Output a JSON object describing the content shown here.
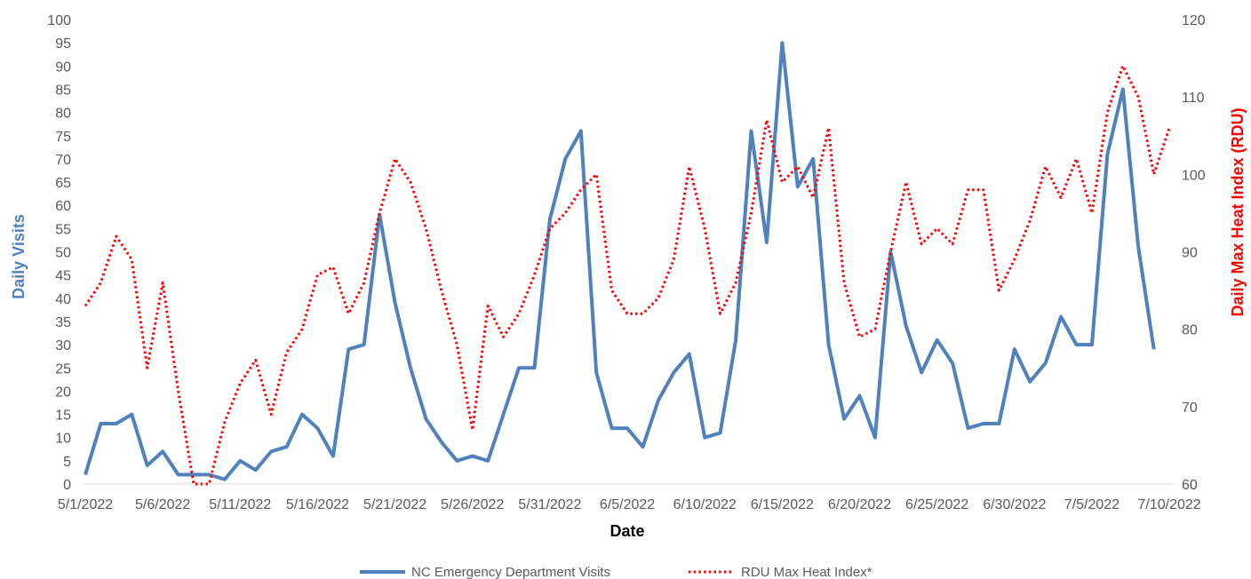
{
  "chart_data": {
    "type": "line",
    "title": "",
    "xlabel": "Date",
    "ylabel_left": "Daily Visits",
    "ylabel_right": "Daily Max Heat Index (RDU)",
    "x_start": "5/1/2022",
    "x_tick_labels": [
      "5/1/2022",
      "5/6/2022",
      "5/11/2022",
      "5/16/2022",
      "5/21/2022",
      "5/26/2022",
      "5/31/2022",
      "6/5/2022",
      "6/10/2022",
      "6/15/2022",
      "6/20/2022",
      "6/25/2022",
      "6/30/2022",
      "7/5/2022",
      "7/10/2022"
    ],
    "ylim_left": [
      0,
      100
    ],
    "y_ticks_left": [
      0,
      5,
      10,
      15,
      20,
      25,
      30,
      35,
      40,
      45,
      50,
      55,
      60,
      65,
      70,
      75,
      80,
      85,
      90,
      95,
      100
    ],
    "ylim_right": [
      60,
      120
    ],
    "y_ticks_right": [
      60,
      70,
      80,
      90,
      100,
      110,
      120
    ],
    "legend_position": "bottom",
    "series": [
      {
        "name": "NC Emergency Department Visits",
        "axis": "left",
        "color": "#4f81bd",
        "style": "solid",
        "values": [
          2,
          13,
          13,
          15,
          4,
          7,
          2,
          2,
          2,
          1,
          5,
          3,
          7,
          8,
          15,
          12,
          6,
          29,
          30,
          58,
          39,
          25,
          14,
          9,
          5,
          6,
          5,
          15,
          25,
          25,
          57,
          70,
          76,
          24,
          12,
          12,
          8,
          18,
          24,
          28,
          10,
          11,
          31,
          76,
          52,
          95,
          64,
          70,
          30,
          14,
          19,
          10,
          50,
          34,
          24,
          31,
          26,
          12,
          13,
          13,
          29,
          22,
          26,
          36,
          30,
          30,
          71,
          85,
          51,
          29
        ]
      },
      {
        "name": "RDU Max Heat Index*",
        "axis": "right",
        "color": "#ff0000",
        "style": "dotted",
        "values": [
          83,
          86,
          92,
          89,
          75,
          86,
          72,
          60,
          60,
          68,
          73,
          76,
          69,
          77,
          80,
          87,
          88,
          82,
          86,
          95,
          102,
          99,
          93,
          85,
          78,
          67,
          83,
          79,
          82,
          87,
          93,
          95,
          98,
          100,
          85,
          82,
          82,
          84,
          89,
          101,
          93,
          82,
          86,
          95,
          107,
          99,
          101,
          97,
          106,
          86,
          79,
          80,
          90,
          99,
          91,
          93,
          91,
          98,
          98,
          85,
          89,
          94,
          101,
          97,
          102,
          95,
          108,
          114,
          110,
          100,
          106
        ]
      }
    ]
  }
}
